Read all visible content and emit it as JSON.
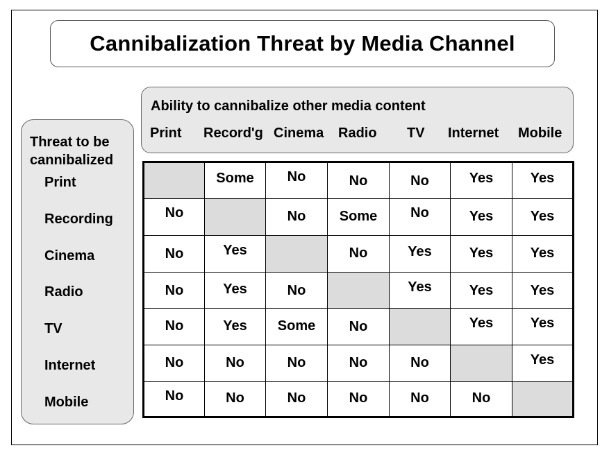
{
  "title": "Cannibalization Threat by Media Channel",
  "columns": {
    "heading": "Ability to cannibalize other media content",
    "labels": [
      "Print",
      "Record'g",
      "Cinema",
      "Radio",
      "TV",
      "Internet",
      "Mobile"
    ]
  },
  "rows": {
    "heading_line1": "Threat to be",
    "heading_line2": "cannibalized",
    "labels": [
      "Print",
      "Recording",
      "Cinema",
      "Radio",
      "TV",
      "Internet",
      "Mobile"
    ]
  },
  "matrix": [
    [
      "",
      "Some",
      "No",
      "No",
      "No",
      "Yes",
      "Yes"
    ],
    [
      "No",
      "",
      "No",
      "Some",
      "No",
      "Yes",
      "Yes"
    ],
    [
      "No",
      "Yes",
      "",
      "No",
      "Yes",
      "Yes",
      "Yes"
    ],
    [
      "No",
      "Yes",
      "No",
      "",
      "Yes",
      "Yes",
      "Yes"
    ],
    [
      "No",
      "Yes",
      "Some",
      "No",
      "",
      "Yes",
      "Yes"
    ],
    [
      "No",
      "No",
      "No",
      "No",
      "No",
      "",
      "Yes"
    ],
    [
      "No",
      "No",
      "No",
      "No",
      "No",
      "No",
      ""
    ]
  ]
}
